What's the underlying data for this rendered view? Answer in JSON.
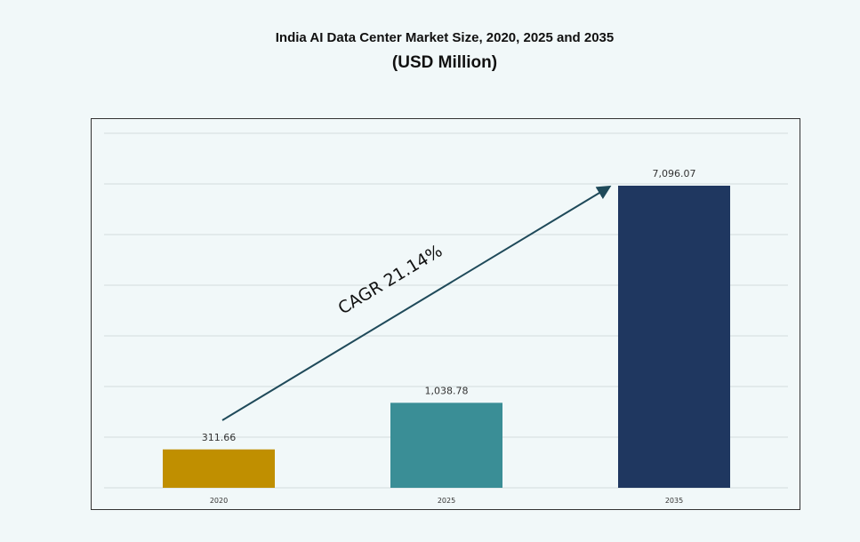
{
  "chart_data": {
    "type": "bar",
    "title": "India AI Data Center Market Size, 2020, 2025 and 2035",
    "subtitle": "(USD Million)",
    "categories": [
      "2020",
      "2025",
      "2035"
    ],
    "values": [
      311.66,
      1038.78,
      7096.07
    ],
    "data_labels": [
      "311.66",
      "1,038.78",
      "7,096.07"
    ],
    "colors": [
      "#c08f00",
      "#3a8e96",
      "#1f3760"
    ],
    "annotation": "CAGR 21.14%",
    "annotation_color": "#1f4a5a",
    "grid": true,
    "xlabel": "",
    "ylabel": "",
    "y_tick_labels_shown": false,
    "legend": "none"
  }
}
